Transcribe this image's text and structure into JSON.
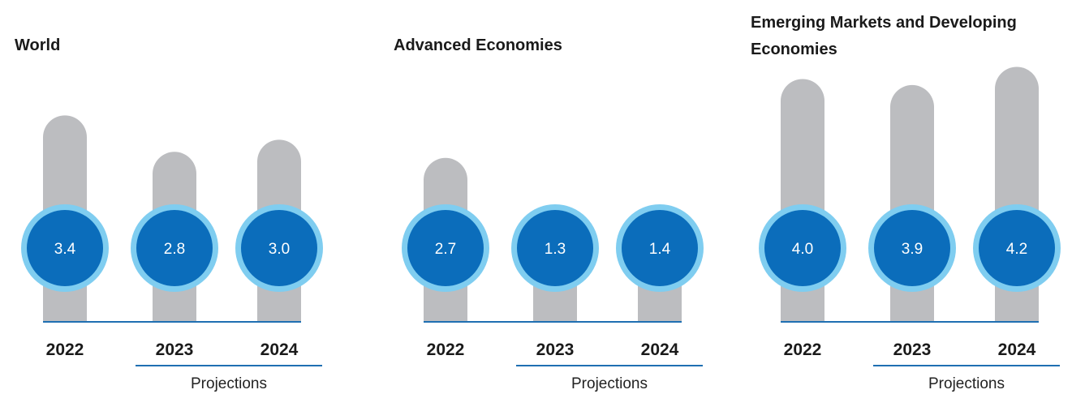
{
  "colors": {
    "bar": "#bcbdc0",
    "bubble": "#0b6dbb",
    "bubble_ring": "#7fcdf0",
    "baseline": "#1f6fb2",
    "text": "#1a1a1a",
    "value_text": "#ffffff"
  },
  "chart_data": [
    {
      "type": "bar",
      "title": [
        "World"
      ],
      "categories": [
        "2022",
        "2023",
        "2024"
      ],
      "values": [
        3.4,
        2.8,
        3.0
      ],
      "projection_label": "Projections",
      "projected_categories": [
        "2023",
        "2024"
      ],
      "ylim": [
        0,
        4.5
      ]
    },
    {
      "type": "bar",
      "title": [
        "Advanced Economies"
      ],
      "categories": [
        "2022",
        "2023",
        "2024"
      ],
      "values": [
        2.7,
        1.3,
        1.4
      ],
      "projection_label": "Projections",
      "projected_categories": [
        "2023",
        "2024"
      ],
      "ylim": [
        0,
        4.5
      ]
    },
    {
      "type": "bar",
      "title": [
        "Emerging Markets and Developing",
        "Economies"
      ],
      "categories": [
        "2022",
        "2023",
        "2024"
      ],
      "values": [
        4.0,
        3.9,
        4.2
      ],
      "projection_label": "Projections",
      "projected_categories": [
        "2023",
        "2024"
      ],
      "ylim": [
        0,
        4.5
      ]
    }
  ]
}
